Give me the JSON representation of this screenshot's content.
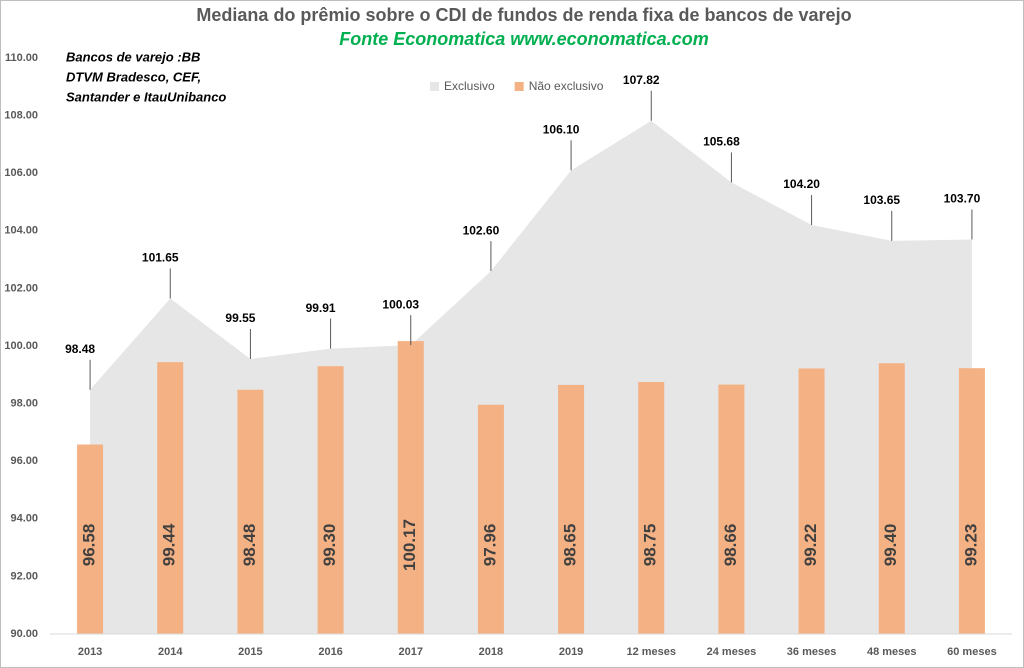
{
  "chart_data": {
    "type": "area_bar",
    "title": "Mediana do prêmio sobre o CDI de fundos de renda fixa de bancos de varejo",
    "subtitle": "Fonte Economatica www.economatica.com",
    "annotation": [
      "Bancos de varejo :BB",
      "DTVM Bradesco, CEF,",
      "Santander e ItauUnibanco"
    ],
    "categories": [
      "2013",
      "2014",
      "2015",
      "2016",
      "2017",
      "2018",
      "2019",
      "12 meses",
      "24 meses",
      "36 meses",
      "48 meses",
      "60 meses"
    ],
    "series": [
      {
        "name": "Exclusivo",
        "kind": "area",
        "color": "#e6e6e6",
        "values": [
          98.48,
          101.65,
          99.55,
          99.91,
          100.03,
          102.6,
          106.1,
          107.82,
          105.68,
          104.2,
          103.65,
          103.7
        ],
        "value_labels": [
          "98.48",
          "101.65",
          "99.55",
          "99.91",
          "100.03",
          "102.60",
          "106.10",
          "107.82",
          "105.68",
          "104.20",
          "103.65",
          "103.70"
        ]
      },
      {
        "name": "Não exclusivo",
        "kind": "bar",
        "color": "#f4b183",
        "values": [
          96.58,
          99.44,
          98.48,
          99.3,
          100.17,
          97.96,
          98.65,
          98.75,
          98.66,
          99.22,
          99.4,
          99.23
        ],
        "value_labels": [
          "96.58",
          "99.44",
          "98.48",
          "99.30",
          "100.17",
          "97.96",
          "98.65",
          "98.75",
          "98.66",
          "99.22",
          "99.40",
          "99.23"
        ]
      }
    ],
    "ylim": [
      90,
      110
    ],
    "yticks": [
      {
        "value": 90,
        "label": "90.00"
      },
      {
        "value": 92,
        "label": "92.00"
      },
      {
        "value": 94,
        "label": "94.00"
      },
      {
        "value": 96,
        "label": "96.00"
      },
      {
        "value": 98,
        "label": "98.00"
      },
      {
        "value": 100,
        "label": "100.00"
      },
      {
        "value": 102,
        "label": "102.00"
      },
      {
        "value": 104,
        "label": "104.00"
      },
      {
        "value": 106,
        "label": "106.00"
      },
      {
        "value": 108,
        "label": "108.00"
      },
      {
        "value": 110,
        "label": "110.00"
      }
    ],
    "legend": "top"
  }
}
